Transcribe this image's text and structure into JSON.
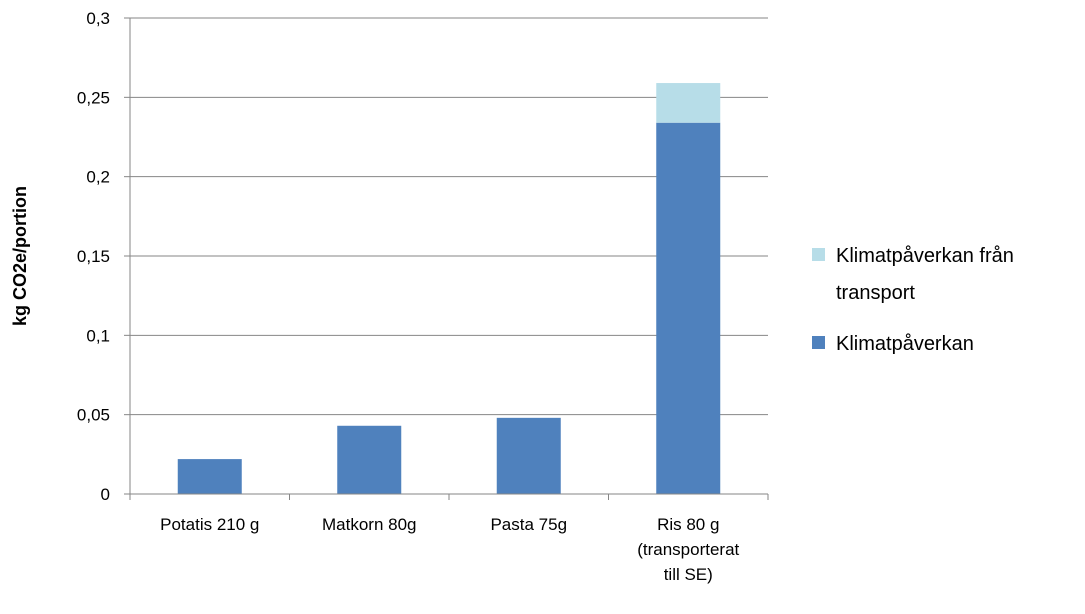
{
  "chart_data": {
    "type": "bar",
    "stacked": true,
    "categories": [
      [
        "Potatis 210 g"
      ],
      [
        "Matkorn 80g"
      ],
      [
        "Pasta 75g"
      ],
      [
        "Ris 80 g",
        "(transporterat",
        "till SE)"
      ]
    ],
    "series": [
      {
        "name": "Klimatpåverkan",
        "color": "#4f81bd",
        "values": [
          0.022,
          0.043,
          0.048,
          0.234
        ]
      },
      {
        "name_lines": [
          "Klimatpåverkan från",
          "transport"
        ],
        "color": "#b7dde8",
        "values": [
          0,
          0,
          0,
          0.025
        ]
      }
    ],
    "ylabel": "kg CO2e/portion",
    "ylim": [
      0,
      0.3
    ],
    "yticks": [
      0,
      0.05,
      0.1,
      0.15,
      0.2,
      0.25,
      0.3
    ],
    "ytick_labels": [
      "0",
      "0,05",
      "0,1",
      "0,15",
      "0,2",
      "0,25",
      "0,3"
    ],
    "grid": true,
    "legend": "right",
    "legend_order": [
      1,
      0
    ]
  }
}
